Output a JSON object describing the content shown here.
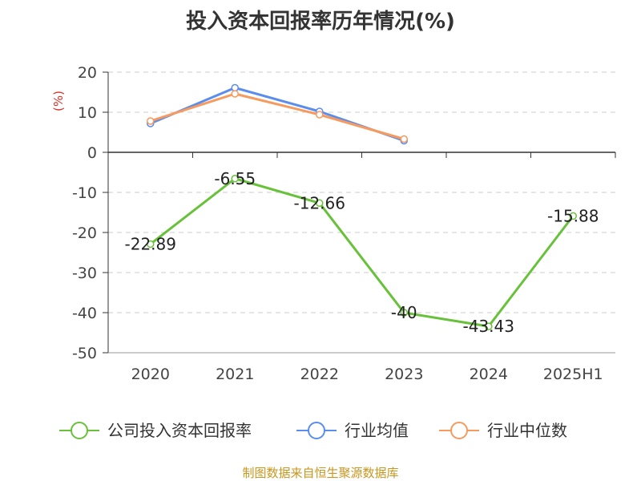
{
  "title": "投入资本回报率历年情况(%)",
  "source": "制图数据来自恒生聚源数据库",
  "chart_data": {
    "type": "line",
    "title": "投入资本回报率历年情况(%)",
    "ylabel": "(%)",
    "xlabel": "",
    "categories": [
      "2020",
      "2021",
      "2022",
      "2023",
      "2024",
      "2025H1"
    ],
    "ylim": [
      -50,
      20
    ],
    "yticks": [
      20,
      10,
      0,
      -10,
      -20,
      -30,
      -40,
      -50
    ],
    "grid": true,
    "legend_position": "bottom",
    "series": [
      {
        "name": "公司投入资本回报率",
        "color": "#67c23a",
        "values": [
          -22.89,
          -6.55,
          -12.66,
          -40,
          -43.43,
          -15.88
        ],
        "labels": [
          "-22.89",
          "-6.55",
          "-12.66",
          "-40",
          "-43.43",
          "-15.88"
        ]
      },
      {
        "name": "行业均值",
        "color": "#5b8def",
        "values": [
          7.2,
          16.1,
          10.2,
          2.9,
          null,
          null
        ]
      },
      {
        "name": "行业中位数",
        "color": "#f79a5e",
        "values": [
          7.8,
          14.6,
          9.4,
          3.3,
          null,
          null
        ]
      }
    ]
  }
}
